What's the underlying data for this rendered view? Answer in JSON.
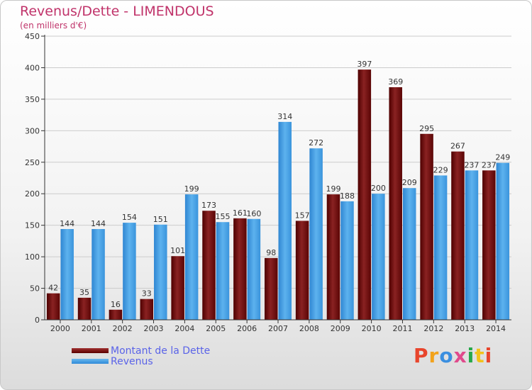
{
  "title": "Revenus/Dette - LIMENDOUS",
  "subtitle": "(en milliers d'€)",
  "brand": {
    "text": "Proxiti",
    "colors": [
      "#e8452c",
      "#f2a21b",
      "#3b8fe0",
      "#e04a8c",
      "#26a84a",
      "#f2c21b",
      "#e8452c"
    ]
  },
  "colors": {
    "dette": "#6d0f0f",
    "revenus": "#3d9ae0",
    "axis": "#333333",
    "grid": "#cccccc"
  },
  "chart_data": {
    "type": "bar",
    "categories": [
      "2000",
      "2001",
      "2002",
      "2003",
      "2004",
      "2005",
      "2006",
      "2007",
      "2008",
      "2009",
      "2010",
      "2011",
      "2012",
      "2013",
      "2014"
    ],
    "series": [
      {
        "name": "Montant de la Dette",
        "values": [
          42,
          35,
          16,
          33,
          101,
          173,
          161,
          98,
          157,
          199,
          397,
          369,
          295,
          267,
          237
        ]
      },
      {
        "name": "Revenus",
        "values": [
          144,
          144,
          154,
          151,
          199,
          155,
          160,
          314,
          272,
          188,
          200,
          209,
          229,
          237,
          249
        ]
      }
    ],
    "yticks": [
      "0",
      "50",
      "100",
      "150",
      "200",
      "250",
      "300",
      "350",
      "400",
      "450"
    ],
    "ylim": [
      0,
      450
    ],
    "grid": true,
    "legend": "bottom-left"
  }
}
